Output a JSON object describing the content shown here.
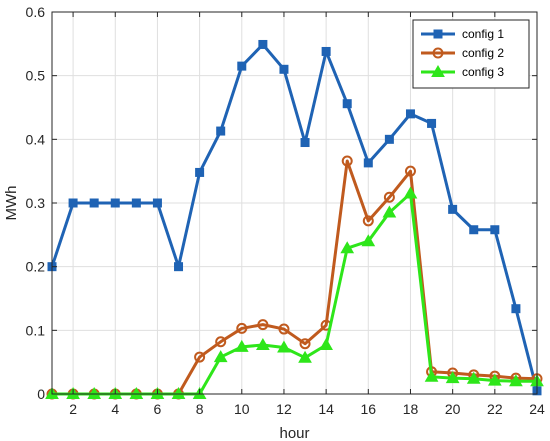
{
  "chart_data": {
    "type": "line",
    "xlabel": "hour",
    "ylabel": "MWh",
    "xlim": [
      1,
      24
    ],
    "ylim": [
      0,
      0.6
    ],
    "xticks": [
      2,
      4,
      6,
      8,
      10,
      12,
      14,
      16,
      18,
      20,
      22,
      24
    ],
    "yticks": [
      0,
      0.1,
      0.2,
      0.3,
      0.4,
      0.5,
      0.6
    ],
    "grid": true,
    "legend_position": "top-right",
    "x": [
      1,
      2,
      3,
      4,
      5,
      6,
      7,
      8,
      9,
      10,
      11,
      12,
      13,
      14,
      15,
      16,
      17,
      18,
      19,
      20,
      21,
      22,
      23,
      24
    ],
    "series": [
      {
        "name": "config 1",
        "color": "#1f63b4",
        "marker": "square",
        "values": [
          0.2,
          0.3,
          0.3,
          0.3,
          0.3,
          0.3,
          0.2,
          0.348,
          0.413,
          0.515,
          0.549,
          0.51,
          0.395,
          0.538,
          0.456,
          0.363,
          0.4,
          0.44,
          0.425,
          0.29,
          0.258,
          0.258,
          0.134,
          0.005
        ]
      },
      {
        "name": "config 2",
        "color": "#c05a1e",
        "marker": "circle",
        "values": [
          0,
          0,
          0,
          0,
          0,
          0,
          0,
          0.058,
          0.082,
          0.103,
          0.109,
          0.102,
          0.079,
          0.108,
          0.366,
          0.272,
          0.309,
          0.35,
          0.035,
          0.033,
          0.03,
          0.028,
          0.025,
          0.024
        ]
      },
      {
        "name": "config 3",
        "color": "#2ee61a",
        "marker": "triangle",
        "values": [
          0,
          0,
          0,
          0,
          0,
          0,
          0,
          0,
          0.058,
          0.074,
          0.077,
          0.073,
          0.057,
          0.077,
          0.229,
          0.24,
          0.285,
          0.315,
          0.027,
          0.025,
          0.024,
          0.021,
          0.02,
          0.02
        ]
      }
    ]
  }
}
